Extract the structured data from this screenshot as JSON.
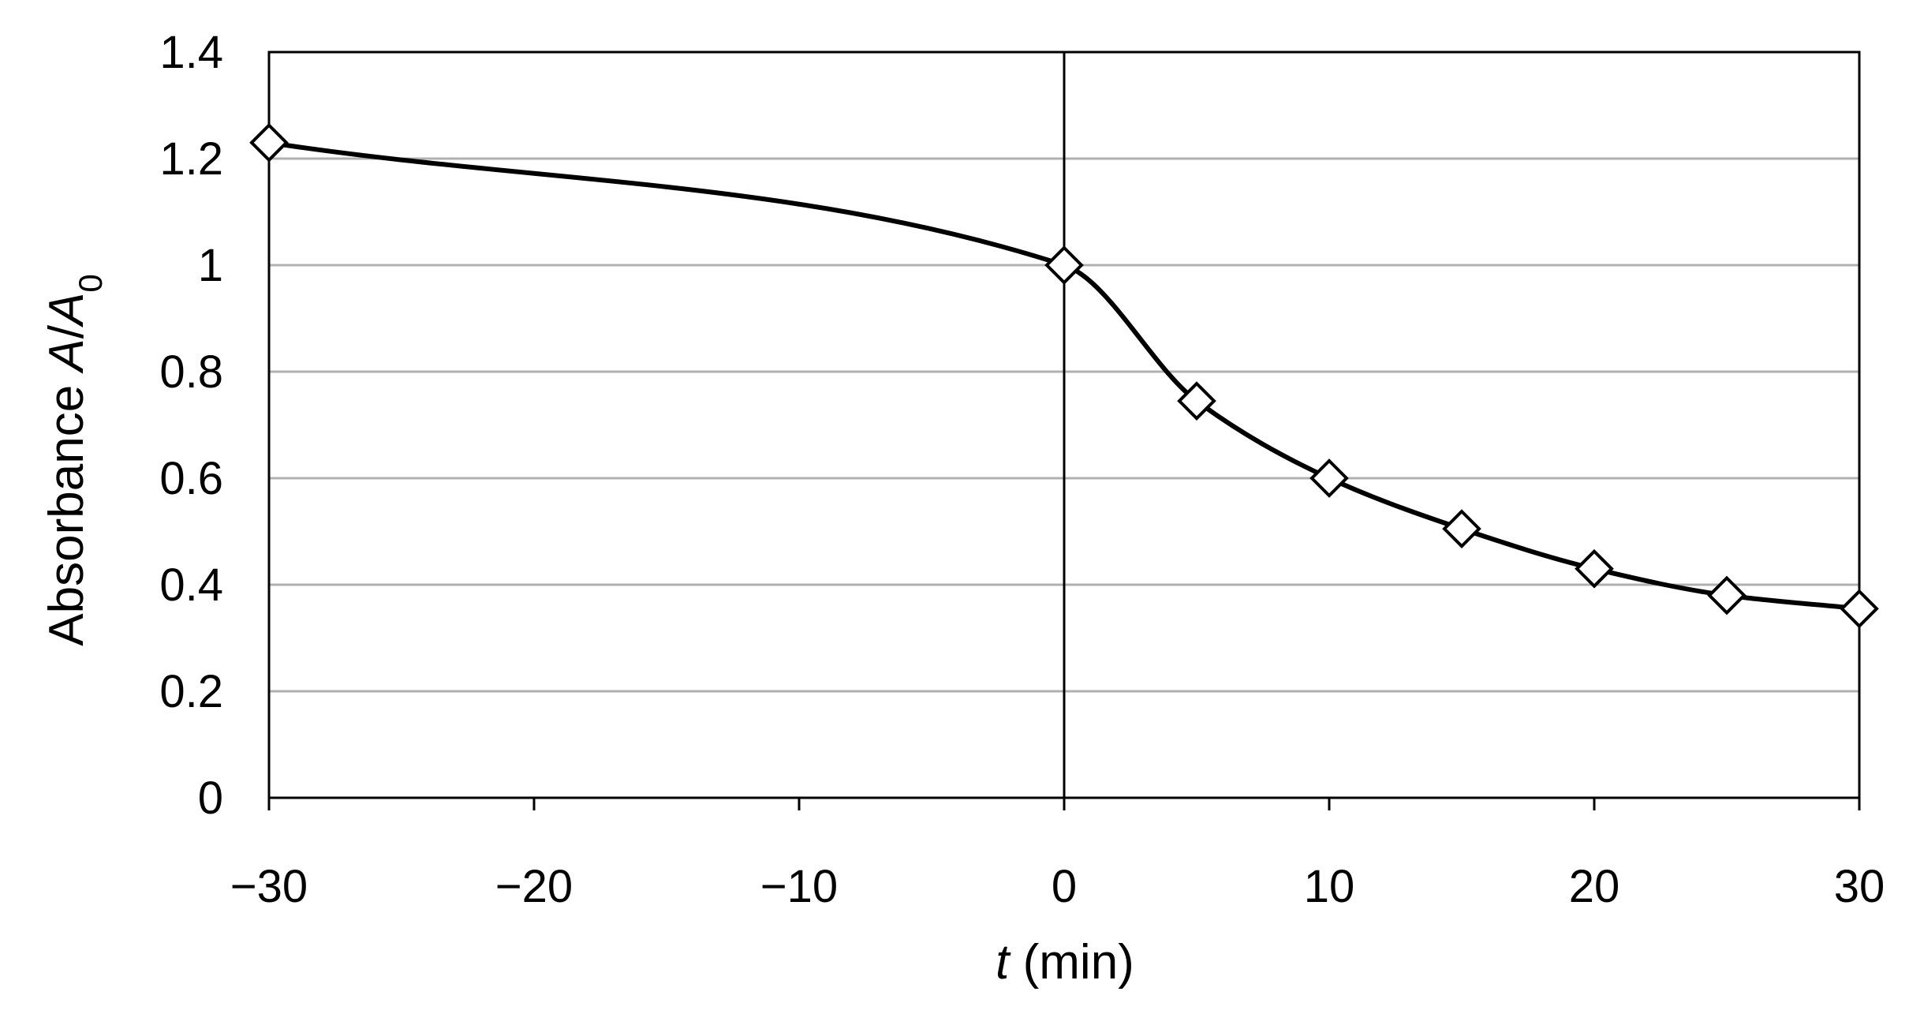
{
  "chart_data": {
    "type": "line",
    "title": "",
    "xlabel": {
      "italic": "t",
      "rest": " (min)"
    },
    "ylabel": {
      "prefix": "Absorbance ",
      "italic_a": "A",
      "slash": "/",
      "italic_a0": "A",
      "subscript": "0"
    },
    "xlim": [
      -30,
      30
    ],
    "ylim": [
      0,
      1.4
    ],
    "x_ticks": [
      -30,
      -20,
      -10,
      0,
      10,
      20,
      30
    ],
    "x_tick_labels": [
      "−30",
      "−20",
      "−10",
      "0",
      "10",
      "20",
      "30"
    ],
    "y_ticks": [
      0,
      0.2,
      0.4,
      0.6,
      0.8,
      1,
      1.2,
      1.4
    ],
    "y_tick_labels": [
      "0",
      "0.2",
      "0.4",
      "0.6",
      "0.8",
      "1",
      "1.2",
      "1.4"
    ],
    "grid": "horizontal",
    "vertical_reference_line_x": 0,
    "series": [
      {
        "marker": "open-diamond",
        "line": "smooth",
        "points": [
          {
            "x": -30,
            "y": 1.23
          },
          {
            "x": 0,
            "y": 1.0
          },
          {
            "x": 5,
            "y": 0.745
          },
          {
            "x": 10,
            "y": 0.6
          },
          {
            "x": 15,
            "y": 0.505
          },
          {
            "x": 20,
            "y": 0.43
          },
          {
            "x": 25,
            "y": 0.38
          },
          {
            "x": 30,
            "y": 0.355
          }
        ]
      }
    ],
    "colors": {
      "line": "#000000",
      "grid": "#b0b0b0",
      "axes": "#000000",
      "marker_fill": "#ffffff"
    }
  }
}
